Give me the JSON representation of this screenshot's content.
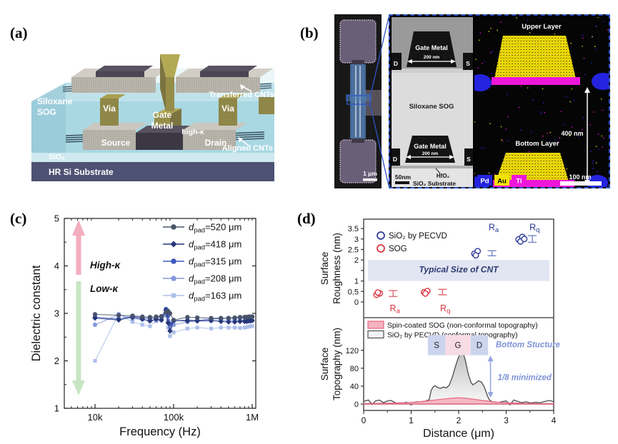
{
  "panels": {
    "a": "(a)",
    "b": "(b)",
    "c": "(c)",
    "d": "(d)"
  },
  "panel_a": {
    "labels": {
      "siloxane_sog_line1": "Siloxane",
      "siloxane_sog_line2": "SOG",
      "via_left": "Via",
      "via_right": "Via",
      "gate_line1": "Gate",
      "gate_line2": "Metal",
      "source": "Source",
      "drain": "Drain",
      "high_k": "high-κ",
      "transferred_cnts": "Transferred CNTs",
      "aligned_cnts": "Aligned CNTs",
      "sio2": "SiO₂",
      "substrate": "HR Si Substrate"
    },
    "colors": {
      "sog_body": "#a9d8e3",
      "sog_top": "#d6edf3",
      "substrate": "#4d5274",
      "sio2_layer": "#cfe9ee",
      "metal_grain": "#b6b2a9",
      "gold": "#958c49",
      "dark_plate": "#56525f"
    }
  },
  "panel_b": {
    "sem": {
      "scale_bar": "1 μm"
    },
    "tem": {
      "gate_top": "Gate Metal",
      "gate_top_width": "200 nm",
      "gate_bottom": "Gate Metal",
      "gate_bottom_width": "200 nm",
      "d_top": "D",
      "s_top": "S",
      "d_bottom": "D",
      "s_bottom": "S",
      "sog": "Siloxane SOG",
      "hfo2": "HfO₂",
      "substrate": "SiO₂ Substrate",
      "scale_bar": "50nm"
    },
    "eds": {
      "upper": "Upper Layer",
      "bottom": "Bottom Layer",
      "height": "400 nm",
      "scale_bar": "100 nm",
      "legend": [
        {
          "label": "Pd",
          "color": "#2424e0",
          "text": "#ffffff"
        },
        {
          "label": "Au",
          "color": "#f2e400",
          "text": "#000000"
        },
        {
          "label": "Ti",
          "color": "#ee16d8",
          "text": "#ffffff"
        }
      ]
    }
  },
  "chart_data": [
    {
      "id": "dielectric",
      "type": "line",
      "xlabel": "Frequency (Hz)",
      "ylabel": "Dielectric constant",
      "x_scale": "log",
      "xlim": [
        4100,
        1110000
      ],
      "ylim": [
        1,
        5
      ],
      "x_ticks": [
        {
          "v": 10000,
          "label": "10k"
        },
        {
          "v": 100000,
          "label": "100k"
        },
        {
          "v": 1000000,
          "label": "1M"
        }
      ],
      "y_ticks": [
        1,
        2,
        3,
        4,
        5
      ],
      "annotations": {
        "high": "High-κ",
        "low": "Low-κ",
        "arrow_up_color": "#f3aebf",
        "arrow_down_color": "#c8e5c3"
      },
      "x_khz": [
        10,
        20,
        30,
        40,
        50,
        60,
        70,
        80,
        85,
        90,
        100,
        150,
        200,
        300,
        400,
        500,
        600,
        700,
        800,
        850,
        900,
        950,
        1000
      ],
      "series": [
        {
          "name_pre": "d",
          "name_sub": "pad",
          "name_post": "=520 μm",
          "marker": "circle",
          "color": "#49536b",
          "values": [
            2.98,
            2.96,
            2.95,
            2.93,
            2.92,
            2.93,
            2.94,
            3.02,
            3.05,
            3.0,
            2.86,
            2.92,
            2.91,
            2.9,
            2.9,
            2.9,
            2.91,
            2.92,
            2.92,
            2.92,
            2.93,
            2.93,
            2.93
          ]
        },
        {
          "name_pre": "d",
          "name_sub": "pad",
          "name_post": "=418 μm",
          "marker": "diamond",
          "color": "#273779",
          "values": [
            2.9,
            2.86,
            2.92,
            2.88,
            2.84,
            2.88,
            2.86,
            3.06,
            2.8,
            2.63,
            2.85,
            2.84,
            2.84,
            2.85,
            2.83,
            2.82,
            2.82,
            2.83,
            2.83,
            2.83,
            2.84,
            2.84,
            2.85
          ]
        },
        {
          "name_pre": "d",
          "name_sub": "pad",
          "name_post": "=315 μm",
          "marker": "circle",
          "color": "#3c58bc",
          "values": [
            2.92,
            2.88,
            2.94,
            2.91,
            2.89,
            2.91,
            2.93,
            3.09,
            2.95,
            2.78,
            2.84,
            2.86,
            2.85,
            2.88,
            2.89,
            2.9,
            2.9,
            2.91,
            2.92,
            2.92,
            2.92,
            2.93,
            2.93
          ]
        },
        {
          "name_pre": "d",
          "name_sub": "pad",
          "name_post": "=208 μm",
          "marker": "pentagon",
          "color": "#8399da",
          "values": [
            2.76,
            2.97,
            2.89,
            2.87,
            2.84,
            2.85,
            2.87,
            2.96,
            2.85,
            2.7,
            2.76,
            2.82,
            2.84,
            2.84,
            2.85,
            2.85,
            2.85,
            2.85,
            2.84,
            2.84,
            2.84,
            2.85,
            2.85
          ]
        },
        {
          "name_pre": "d",
          "name_sub": "pad",
          "name_post": "=163 μm",
          "marker": "square",
          "color": "#aebfe9",
          "values": [
            2.0,
            2.99,
            2.82,
            2.76,
            2.73,
            2.84,
            2.85,
            2.97,
            2.7,
            2.52,
            2.6,
            2.68,
            2.7,
            2.68,
            2.7,
            2.7,
            2.7,
            2.69,
            2.7,
            2.71,
            2.72,
            2.73,
            2.73
          ]
        }
      ]
    },
    {
      "id": "roughness",
      "type": "scatter",
      "ylabel_line1": "Surface",
      "ylabel_line2": "Roughness (nm)",
      "xlim": [
        0,
        4
      ],
      "ylim": [
        -0.75,
        3.95
      ],
      "y_ticks": [
        {
          "v": 0,
          "label": "0"
        },
        {
          "v": 0.5,
          "label": "0.5"
        },
        {
          "v": 1,
          "label": "1"
        },
        {
          "v": 1.5,
          "label": ""
        },
        {
          "v": 2,
          "label": "2"
        },
        {
          "v": 2.5,
          "label": "2.5"
        },
        {
          "v": 3,
          "label": "3"
        },
        {
          "v": 3.5,
          "label": "3.5"
        }
      ],
      "band": {
        "y0": 1,
        "y1": 2,
        "label": "Typical Size of CNT",
        "fill": "#e2e6f3",
        "text_color": "#2c3a72"
      },
      "legend": [
        {
          "label": "SiO₂ by PECVD",
          "color": "#2c3a96"
        },
        {
          "label": "SOG",
          "color": "#dc2f3e"
        }
      ],
      "groups": [
        {
          "color": "#dc2f3e",
          "err_color": "#e06a76",
          "points": [
            [
              0.27,
              0.34
            ],
            [
              0.34,
              0.41
            ],
            [
              0.3,
              0.45
            ]
          ],
          "errorbar": {
            "x": 0.62,
            "y": 0.4,
            "err": 0.14
          },
          "label": {
            "main": "R",
            "sub": "a",
            "x": 0.64,
            "y": -0.3
          }
        },
        {
          "color": "#dc2f3e",
          "err_color": "#e06a76",
          "points": [
            [
              1.27,
              0.46
            ],
            [
              1.34,
              0.52
            ],
            [
              1.3,
              0.4
            ]
          ],
          "errorbar": {
            "x": 1.66,
            "y": 0.47,
            "err": 0.13
          },
          "label": {
            "main": "R",
            "sub": "q",
            "x": 1.7,
            "y": -0.3
          }
        },
        {
          "color": "#2c3a96",
          "err_color": "#7688c4",
          "points": [
            [
              2.33,
              2.3
            ],
            [
              2.4,
              2.42
            ],
            [
              2.36,
              2.22
            ]
          ],
          "errorbar": {
            "x": 2.7,
            "y": 2.32,
            "err": 0.12
          },
          "label": {
            "main": "R",
            "sub": "a",
            "x": 2.72,
            "y": 3.55
          }
        },
        {
          "color": "#2c3a96",
          "err_color": "#7688c4",
          "points": [
            [
              3.26,
              2.98
            ],
            [
              3.34,
              3.1
            ],
            [
              3.3,
              2.88
            ],
            [
              3.38,
              3.0
            ]
          ],
          "errorbar": {
            "x": 3.55,
            "y": 3.0,
            "err": 0.16
          },
          "label": {
            "main": "R",
            "sub": "q",
            "x": 3.58,
            "y": 3.55
          }
        }
      ]
    },
    {
      "id": "topography",
      "type": "area",
      "xlabel": "Distance (μm)",
      "ylabel_line1": "Surface",
      "ylabel_line2": "Topography (nm)",
      "xlim": [
        0,
        4
      ],
      "ylim": [
        -14,
        193
      ],
      "x_ticks": [
        0,
        1,
        2,
        3,
        4
      ],
      "y_ticks": [
        0,
        40,
        80,
        120
      ],
      "legend": [
        {
          "label": "Spin-coated SOG (non-conformal topography)",
          "fill": "#f7b3c2",
          "stroke": "#e25b78"
        },
        {
          "label": "SiO₂ by PECVD (conformal topography)",
          "fill": "#f2f2f2",
          "stroke": "#444444"
        }
      ],
      "annotations": {
        "boxes": [
          {
            "label": "S",
            "x0": 1.35,
            "x1": 1.72,
            "color": "#ccd5ee"
          },
          {
            "label": "G",
            "x0": 1.72,
            "x1": 2.25,
            "color": "#f8dce5"
          },
          {
            "label": "D",
            "x0": 2.25,
            "x1": 2.62,
            "color": "#ccd5ee"
          }
        ],
        "box_y": [
          109,
          154
        ],
        "bottom_structure": "Bottom Stucture",
        "minimized": "1/8 minimized",
        "anno_color": "#7f92d8",
        "arrow": {
          "x": 2.67,
          "y_top": 108,
          "y_bot": 14
        }
      },
      "series": [
        {
          "name": "SiO2_PECVD",
          "x": [
            0,
            0.1,
            0.18,
            0.25,
            0.33,
            0.42,
            0.5,
            0.58,
            0.68,
            0.78,
            0.9,
            1.0,
            1.1,
            1.2,
            1.3,
            1.38,
            1.42,
            1.46,
            1.5,
            1.56,
            1.62,
            1.68,
            1.74,
            1.8,
            1.86,
            1.92,
            1.98,
            2.02,
            2.06,
            2.1,
            2.14,
            2.2,
            2.26,
            2.3,
            2.36,
            2.42,
            2.48,
            2.54,
            2.6,
            2.64,
            2.7,
            2.8,
            2.9,
            3.0,
            3.08,
            3.16,
            3.24,
            3.32,
            3.42,
            3.52,
            3.62,
            3.72,
            3.82,
            3.92,
            4.0
          ],
          "y": [
            6,
            9,
            -1,
            7,
            9,
            3,
            7,
            8,
            2,
            1,
            4,
            -2,
            5,
            4,
            6,
            10,
            30,
            38,
            41,
            37,
            35,
            38,
            36,
            42,
            58,
            80,
            100,
            110,
            117,
            112,
            98,
            68,
            48,
            43,
            47,
            52,
            49,
            38,
            20,
            10,
            5,
            2,
            5,
            7,
            -2,
            9,
            6,
            3,
            5,
            2,
            4,
            3,
            6,
            8,
            5
          ]
        },
        {
          "name": "SOG",
          "x": [
            0,
            0.3,
            0.6,
            0.9,
            1.1,
            1.3,
            1.5,
            1.7,
            1.85,
            2.0,
            2.15,
            2.3,
            2.5,
            2.7,
            2.9,
            3.1,
            3.4,
            3.7,
            4.0
          ],
          "y": [
            1,
            1.5,
            2,
            3,
            4.5,
            6.5,
            9,
            11.5,
            13,
            14,
            13,
            11,
            8,
            5.5,
            3.5,
            2.5,
            1.5,
            1,
            1
          ]
        }
      ]
    }
  ]
}
